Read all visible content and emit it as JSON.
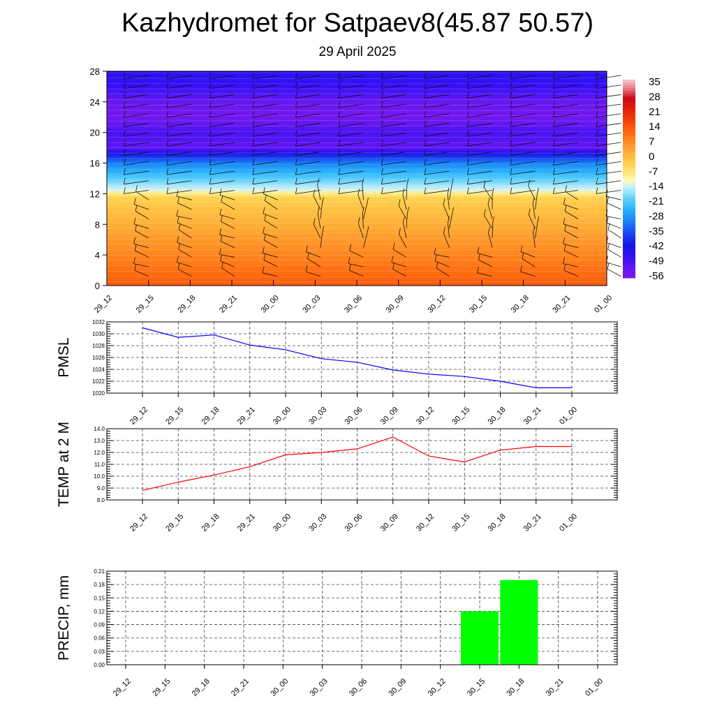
{
  "title": "Kazhydromet for Satpaev8(45.87 50.57)",
  "date": "29 April 2025",
  "time_labels": [
    "29_12",
    "29_15",
    "29_18",
    "29_21",
    "30_00",
    "30_03",
    "30_06",
    "30_09",
    "30_12",
    "30_15",
    "30_18",
    "30_21",
    "01_00"
  ],
  "colors": {
    "pmsl_line": "#0000ff",
    "temp_line": "#ff0000",
    "precip_bar": "#00ff00"
  },
  "chart_data": [
    {
      "type": "heatmap",
      "description_variable": "temperature vs height with wind barbs",
      "x": [
        "29_12",
        "29_15",
        "29_18",
        "29_21",
        "30_00",
        "30_03",
        "30_06",
        "30_09",
        "30_12",
        "30_15",
        "30_18",
        "30_21",
        "01_00"
      ],
      "y_ticks": [
        0,
        4,
        8,
        12,
        16,
        20,
        24,
        28
      ],
      "ylim": [
        0,
        28
      ],
      "colorbar_ticks": [
        35,
        28,
        21,
        14,
        7,
        0,
        -7,
        -14,
        -21,
        -28,
        -35,
        -42,
        -49,
        -56
      ],
      "colorbar_range": [
        -60,
        38
      ],
      "temperature_profile": {
        "height": [
          0,
          2,
          4,
          6,
          8,
          10,
          11.5,
          12.5,
          14,
          16,
          17,
          18,
          20,
          22,
          24,
          26,
          28
        ],
        "value": [
          14,
          11,
          8,
          5,
          2,
          -1,
          -4,
          -14,
          -22,
          -32,
          -42,
          -55,
          -52,
          -58,
          -56,
          -50,
          -48
        ]
      },
      "legend": "right colorbar",
      "grid": false
    },
    {
      "type": "line",
      "ylabel": "PMSL",
      "x": [
        "29_12",
        "29_15",
        "29_18",
        "29_21",
        "30_00",
        "30_03",
        "30_06",
        "30_09",
        "30_12",
        "30_15",
        "30_18",
        "30_21",
        "01_00"
      ],
      "y_ticks": [
        1020,
        1022,
        1024,
        1026,
        1028,
        1030,
        1032
      ],
      "ylim": [
        1020,
        1032
      ],
      "series": [
        {
          "values": [
            1031.0,
            1029.4,
            1029.8,
            1028.1,
            1027.3,
            1025.8,
            1025.2,
            1023.9,
            1023.2,
            1022.8,
            1022.0,
            1020.9,
            1020.9
          ]
        }
      ],
      "grid": true
    },
    {
      "type": "line",
      "ylabel": "TEMP at 2 M",
      "x": [
        "29_12",
        "29_15",
        "29_18",
        "29_21",
        "30_00",
        "30_03",
        "30_06",
        "30_09",
        "30_12",
        "30_15",
        "30_18",
        "30_21",
        "01_00"
      ],
      "y_ticks": [
        "8.0",
        "9.0",
        "10.0",
        "11.0",
        "12.0",
        "13.0",
        "14.0"
      ],
      "ylim": [
        8,
        14
      ],
      "series": [
        {
          "values": [
            8.8,
            9.5,
            10.1,
            10.8,
            11.8,
            12.0,
            12.3,
            13.3,
            11.7,
            11.2,
            12.2,
            12.5,
            12.5
          ]
        }
      ],
      "grid": true
    },
    {
      "type": "bar",
      "ylabel": "PRECIP, mm",
      "categories": [
        "29_12",
        "29_15",
        "29_18",
        "29_21",
        "30_00",
        "30_03",
        "30_06",
        "30_09",
        "30_12",
        "30_15",
        "30_18",
        "30_21",
        "01_00"
      ],
      "values": [
        0,
        0,
        0,
        0,
        0,
        0,
        0,
        0,
        0,
        0.12,
        0.19,
        0,
        0
      ],
      "y_ticks": [
        "0.00",
        "0.03",
        "0.06",
        "0.09",
        "0.12",
        "0.15",
        "0.18",
        "0.21"
      ],
      "ylim": [
        0,
        0.21
      ],
      "grid": true
    }
  ]
}
